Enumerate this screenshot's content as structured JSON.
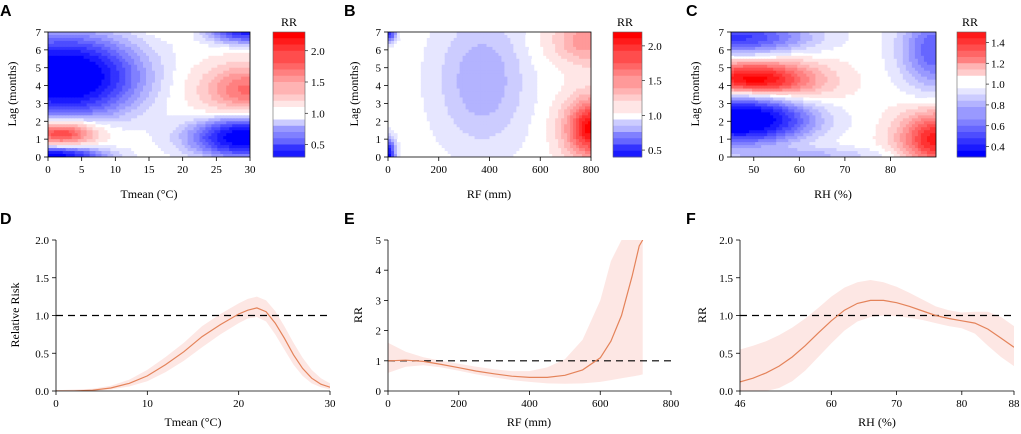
{
  "chart_data": [
    {
      "id": "A",
      "type": "heatmap",
      "panel_label": "A",
      "xlabel": "Tmean (°C)",
      "ylabel": "Lag (months)",
      "xlim": [
        0,
        30
      ],
      "ylim": [
        0,
        7
      ],
      "xticks": [
        "0",
        "5",
        "10",
        "15",
        "20",
        "25",
        "30"
      ],
      "yticks": [
        "0",
        "1",
        "2",
        "3",
        "4",
        "5",
        "6",
        "7"
      ],
      "legend": {
        "title": "RR",
        "range": [
          0.3,
          2.3
        ],
        "ticks": [
          "0.5",
          "1.0",
          "1.5",
          "2.0"
        ],
        "tick_values": [
          0.5,
          1.0,
          1.5,
          2.0
        ]
      },
      "blobs": [
        {
          "x": 2,
          "y": 1.35,
          "sx": 3.8,
          "sy": 0.55,
          "value": 2.2
        },
        {
          "x": 2.5,
          "y": 4.5,
          "sx": 6.5,
          "sy": 1.4,
          "value": 0.2
        },
        {
          "x": 1,
          "y": 0.05,
          "sx": 4.5,
          "sy": 0.35,
          "value": 0.3
        },
        {
          "x": 29.5,
          "y": 3.8,
          "sx": 5,
          "sy": 1.05,
          "value": 1.75
        },
        {
          "x": 29.5,
          "y": 1.1,
          "sx": 5,
          "sy": 0.7,
          "value": 0.25
        },
        {
          "x": 29.5,
          "y": 7.3,
          "sx": 3.5,
          "sy": 0.55,
          "value": 0.3
        },
        {
          "x": 19,
          "y": 7.4,
          "sx": 3,
          "sy": 0.35,
          "value": 1.2
        }
      ]
    },
    {
      "id": "B",
      "type": "heatmap",
      "panel_label": "B",
      "xlabel": "RF (mm)",
      "ylabel": "Lag (months)",
      "xlim": [
        0,
        800
      ],
      "ylim": [
        0,
        7
      ],
      "xticks": [
        "0",
        "200",
        "400",
        "600",
        "800"
      ],
      "yticks": [
        "0",
        "1",
        "2",
        "3",
        "4",
        "5",
        "6",
        "7"
      ],
      "legend": {
        "title": "RR",
        "range": [
          0.4,
          2.2
        ],
        "ticks": [
          "0.5",
          "1.0",
          "1.5",
          "2.0"
        ],
        "tick_values": [
          0.5,
          1.0,
          1.5,
          2.0
        ]
      },
      "blobs": [
        {
          "x": 370,
          "y": 4.3,
          "sx": 120,
          "sy": 2.5,
          "value": 0.8
        },
        {
          "x": 800,
          "y": 1.6,
          "sx": 80,
          "sy": 1.3,
          "value": 2.2
        },
        {
          "x": 780,
          "y": 6.5,
          "sx": 100,
          "sy": 1.0,
          "value": 1.5
        },
        {
          "x": 0,
          "y": 0.1,
          "sx": 18,
          "sy": 0.6,
          "value": 0.4
        },
        {
          "x": 0,
          "y": 6.9,
          "sx": 20,
          "sy": 0.3,
          "value": 0.5
        }
      ]
    },
    {
      "id": "C",
      "type": "heatmap",
      "panel_label": "C",
      "xlabel": "RH (%)",
      "ylabel": "Lag (months)",
      "xlim": [
        45,
        90
      ],
      "ylim": [
        0,
        7
      ],
      "xticks": [
        "50",
        "60",
        "70",
        "80"
      ],
      "yticks": [
        "0",
        "1",
        "2",
        "3",
        "4",
        "5",
        "6",
        "7"
      ],
      "legend": {
        "title": "RR",
        "range": [
          0.3,
          1.5
        ],
        "ticks": [
          "0.4",
          "0.6",
          "0.8",
          "1.0",
          "1.2",
          "1.4"
        ],
        "tick_values": [
          0.4,
          0.6,
          0.8,
          1.0,
          1.2,
          1.4
        ]
      },
      "blobs": [
        {
          "x": 50,
          "y": 4.2,
          "sx": 10,
          "sy": 0.9,
          "value": 1.55
        },
        {
          "x": 47,
          "y": 2.1,
          "sx": 9,
          "sy": 0.8,
          "value": 0.2
        },
        {
          "x": 46,
          "y": 6.7,
          "sx": 10,
          "sy": 0.6,
          "value": 0.45
        },
        {
          "x": 90,
          "y": 1.0,
          "sx": 6,
          "sy": 1.2,
          "value": 1.45
        },
        {
          "x": 90,
          "y": 6.0,
          "sx": 5,
          "sy": 1.4,
          "value": 0.55
        },
        {
          "x": 60,
          "y": 0.1,
          "sx": 12,
          "sy": 0.3,
          "value": 0.8
        }
      ]
    },
    {
      "id": "D",
      "type": "line",
      "panel_label": "D",
      "xlabel": "Tmean (°C)",
      "ylabel": "Relative Risk",
      "xlim": [
        0,
        30
      ],
      "ylim": [
        0,
        2.0
      ],
      "xticks": [
        0,
        10,
        20,
        30
      ],
      "yticks": [
        0.0,
        0.5,
        1.0,
        1.5,
        2.0
      ],
      "ytick_labels": [
        "0.0",
        "0.5",
        "1.0",
        "1.5",
        "2.0"
      ],
      "reference_line": 1.0,
      "x": [
        0,
        2,
        4,
        6,
        8,
        10,
        12,
        14,
        16,
        18,
        20,
        21,
        22,
        23,
        24,
        25,
        26,
        27,
        28,
        29,
        30
      ],
      "y": [
        0.0,
        0.0,
        0.01,
        0.04,
        0.1,
        0.2,
        0.35,
        0.52,
        0.72,
        0.88,
        1.02,
        1.07,
        1.1,
        1.05,
        0.9,
        0.7,
        0.48,
        0.3,
        0.17,
        0.09,
        0.05
      ],
      "lower": [
        0.0,
        0.0,
        0.0,
        0.02,
        0.06,
        0.13,
        0.25,
        0.4,
        0.58,
        0.75,
        0.9,
        0.96,
        0.98,
        0.92,
        0.75,
        0.55,
        0.35,
        0.2,
        0.1,
        0.05,
        0.02
      ],
      "upper": [
        0.01,
        0.02,
        0.03,
        0.07,
        0.15,
        0.28,
        0.45,
        0.64,
        0.86,
        1.02,
        1.16,
        1.22,
        1.25,
        1.2,
        1.06,
        0.86,
        0.64,
        0.44,
        0.28,
        0.17,
        0.1
      ]
    },
    {
      "id": "E",
      "type": "line",
      "panel_label": "E",
      "xlabel": "RF (mm)",
      "ylabel": "RR",
      "xlim": [
        0,
        800
      ],
      "ylim": [
        0,
        5
      ],
      "xticks": [
        0,
        200,
        400,
        600,
        800
      ],
      "yticks": [
        0,
        1,
        2,
        3,
        4,
        5
      ],
      "ytick_labels": [
        "0",
        "1",
        "2",
        "3",
        "4",
        "5"
      ],
      "reference_line": 1,
      "x": [
        0,
        50,
        100,
        150,
        200,
        250,
        300,
        350,
        400,
        450,
        500,
        550,
        600,
        630,
        660,
        690,
        710,
        720
      ],
      "y": [
        1.0,
        1.02,
        0.98,
        0.88,
        0.77,
        0.66,
        0.57,
        0.49,
        0.45,
        0.45,
        0.52,
        0.7,
        1.1,
        1.65,
        2.5,
        3.8,
        4.8,
        5.0
      ],
      "lower": [
        0.6,
        0.8,
        0.85,
        0.78,
        0.67,
        0.55,
        0.45,
        0.36,
        0.3,
        0.25,
        0.24,
        0.25,
        0.3,
        0.36,
        0.42,
        0.48,
        0.52,
        0.55
      ],
      "upper": [
        1.6,
        1.3,
        1.12,
        1.0,
        0.9,
        0.8,
        0.72,
        0.66,
        0.66,
        0.78,
        1.05,
        1.7,
        3.0,
        4.3,
        5.0,
        5.0,
        5.0,
        5.0
      ]
    },
    {
      "id": "F",
      "type": "line",
      "panel_label": "F",
      "xlabel": "RH (%)",
      "ylabel": "RR",
      "xlim": [
        46,
        88
      ],
      "ylim": [
        0,
        2.0
      ],
      "xticks": [
        46,
        60,
        70,
        80,
        88
      ],
      "yticks": [
        0.0,
        0.5,
        1.0,
        1.5,
        2.0
      ],
      "ytick_labels": [
        "0.0",
        "0.5",
        "1.0",
        "1.5",
        "2.0"
      ],
      "reference_line": 1.0,
      "x": [
        46,
        48,
        50,
        52,
        54,
        56,
        58,
        60,
        62,
        64,
        66,
        68,
        70,
        72,
        74,
        76,
        78,
        80,
        82,
        84,
        86,
        88
      ],
      "y": [
        0.12,
        0.17,
        0.24,
        0.33,
        0.45,
        0.6,
        0.77,
        0.93,
        1.07,
        1.16,
        1.2,
        1.2,
        1.17,
        1.12,
        1.06,
        1.0,
        0.96,
        0.93,
        0.9,
        0.82,
        0.7,
        0.58
      ],
      "lower": [
        0.0,
        0.0,
        0.0,
        0.04,
        0.13,
        0.27,
        0.45,
        0.63,
        0.8,
        0.92,
        0.98,
        1.0,
        0.99,
        0.97,
        0.94,
        0.9,
        0.86,
        0.83,
        0.76,
        0.6,
        0.45,
        0.33
      ],
      "upper": [
        0.55,
        0.6,
        0.66,
        0.74,
        0.84,
        0.96,
        1.1,
        1.25,
        1.37,
        1.44,
        1.47,
        1.44,
        1.38,
        1.3,
        1.21,
        1.12,
        1.07,
        1.04,
        1.05,
        1.05,
        0.98,
        0.86
      ]
    }
  ],
  "colors": {
    "high": "#ff0000",
    "low": "#0000ff",
    "curve": "#e4835a",
    "band": "#fde7e4",
    "reference": "#000000"
  }
}
